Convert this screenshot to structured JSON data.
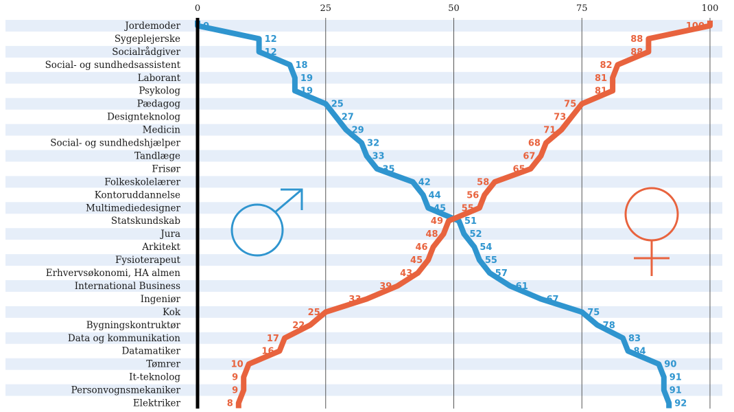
{
  "chart_data": {
    "type": "line",
    "title": "",
    "xlabel": "",
    "ylabel": "",
    "xlim": [
      0,
      100
    ],
    "x_ticks": [
      0,
      25,
      50,
      75,
      100
    ],
    "grid": true,
    "legend": "symbols: male symbol left-center, female symbol right-center",
    "categories": [
      "Jordemoder",
      "Sygeplejerske",
      "Socialrådgiver",
      "Social- og sundhedsassistent",
      "Laborant",
      "Psykolog",
      "Pædagog",
      "Designteknolog",
      "Medicin",
      "Social- og sundhedshjælper",
      "Tandlæge",
      "Frisør",
      "Folkeskolelærer",
      "Kontoruddannelse",
      "Multimediedesigner",
      "Statskundskab",
      "Jura",
      "Arkitekt",
      "Fysioterapeut",
      "Erhvervsøkonomi, HA almen",
      "International Business",
      "Ingeniør",
      "Kok",
      "Bygningskontruktør",
      "Data og kommunikation",
      "Datamatiker",
      "Tømrer",
      "It-teknolog",
      "Personvognsmekaniker",
      "Elektriker"
    ],
    "series": [
      {
        "symbol": "male",
        "color": "#2f95cf",
        "values": [
          0,
          12,
          12,
          18,
          19,
          19,
          25,
          27,
          29,
          32,
          33,
          35,
          42,
          44,
          45,
          51,
          52,
          54,
          55,
          57,
          61,
          67,
          75,
          78,
          83,
          84,
          90,
          91,
          91,
          92
        ]
      },
      {
        "symbol": "female",
        "color": "#e8633e",
        "values": [
          100,
          88,
          88,
          82,
          81,
          81,
          75,
          73,
          71,
          68,
          67,
          65,
          58,
          56,
          55,
          49,
          48,
          46,
          45,
          43,
          39,
          33,
          25,
          22,
          17,
          16,
          10,
          9,
          9,
          8
        ]
      }
    ]
  },
  "colors": {
    "stripe": "#e6eef9",
    "gridline": "#555555",
    "axis": "#000000"
  }
}
